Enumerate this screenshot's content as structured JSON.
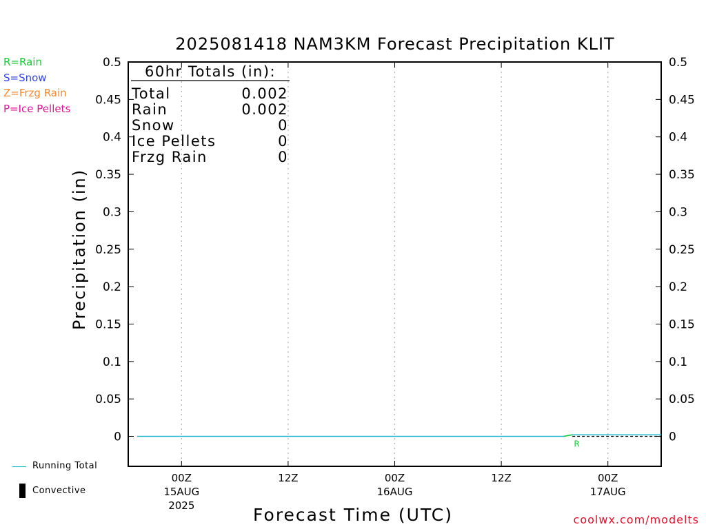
{
  "chart_data": {
    "type": "line",
    "title": "2025081418 NAM3KM Forecast Precipitation KLIT",
    "xlabel": "Forecast Time (UTC)",
    "ylabel": "Precipitation (in)",
    "ylim": [
      -0.04,
      0.5
    ],
    "y_ticks": [
      "0",
      "0.05",
      "0.1",
      "0.15",
      "0.2",
      "0.25",
      "0.3",
      "0.35",
      "0.4",
      "0.45",
      "0.5"
    ],
    "x_ticks": [
      {
        "label": "00Z",
        "sub": "15AUG",
        "sub2": "2025",
        "hour": 0
      },
      {
        "label": "12Z",
        "sub": "",
        "sub2": "",
        "hour": 12
      },
      {
        "label": "00Z",
        "sub": "16AUG",
        "sub2": "",
        "hour": 24
      },
      {
        "label": "12Z",
        "sub": "",
        "sub2": "",
        "hour": 36
      },
      {
        "label": "00Z",
        "sub": "17AUG",
        "sub2": "",
        "hour": 48
      }
    ],
    "x_range_hours": [
      -6,
      54
    ],
    "grid": true,
    "series": [
      {
        "name": "Running Total",
        "color": "#22b8cf",
        "x": [
          -5,
          43,
          44,
          54
        ],
        "values": [
          0,
          0,
          0.002,
          0.002
        ]
      },
      {
        "name": "Rain",
        "color": "#11cc33",
        "x": [
          43,
          44
        ],
        "values": [
          0,
          0.002
        ],
        "marker": "R",
        "marker_x": 44.5
      }
    ],
    "dashed_baseline": {
      "x": [
        44,
        54
      ],
      "value": 0,
      "color": "#000000"
    },
    "totals_box": {
      "header": "60hr Totals (in):",
      "rows": [
        {
          "label": "Total",
          "value": "0.002"
        },
        {
          "label": "Rain",
          "value": "0.002"
        },
        {
          "label": "Snow",
          "value": "0"
        },
        {
          "label": "Ice Pellets",
          "value": "0"
        },
        {
          "label": "Frzg Rain",
          "value": "0"
        }
      ]
    }
  },
  "legend": {
    "types": [
      {
        "label": "R=Rain",
        "color": "#11cc33"
      },
      {
        "label": "S=Snow",
        "color": "#3344e0"
      },
      {
        "label": "Z=Frzg Rain",
        "color": "#f08a30"
      },
      {
        "label": "P=Ice Pellets",
        "color": "#e0119a"
      }
    ],
    "running_total": "Running Total",
    "convective": "Convective"
  },
  "credit": "coolwx.com/modelts"
}
